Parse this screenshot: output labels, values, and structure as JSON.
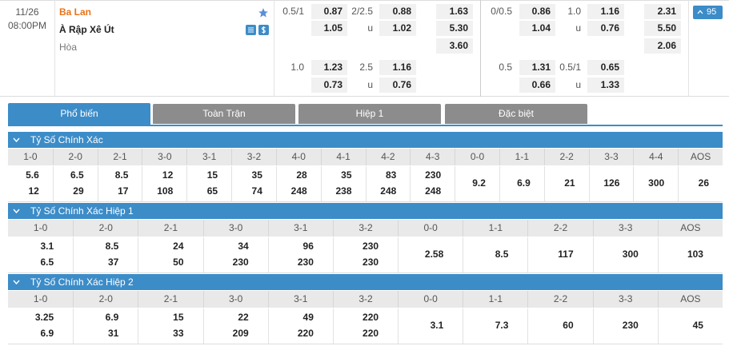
{
  "match": {
    "date": "11/26",
    "time": "08:00PM",
    "home": "Ba Lan",
    "away": "À Rập Xê Út",
    "draw": "Hòa",
    "more": "95"
  },
  "odds": [
    {
      "main": [
        {
          "hdp_line": "0.5/1",
          "hdp": "0.87",
          "ou_line": "2/2.5",
          "ou": "0.88",
          "x12": "1.63"
        },
        {
          "hdp": "1.05",
          "ou_line": "u",
          "ou": "1.02",
          "x12": "5.30"
        },
        {
          "x12": "3.60"
        }
      ],
      "alt": [
        {
          "hdp_line": "1.0",
          "hdp": "1.23",
          "ou_line": "2.5",
          "ou": "1.16"
        },
        {
          "hdp": "0.73",
          "ou_line": "u",
          "ou": "0.76"
        }
      ]
    },
    {
      "main": [
        {
          "hdp_line": "0/0.5",
          "hdp": "0.86",
          "ou_line": "1.0",
          "ou": "1.16",
          "x12": "2.31"
        },
        {
          "hdp": "1.04",
          "ou_line": "u",
          "ou": "0.76",
          "x12": "5.50"
        },
        {
          "x12": "2.06"
        }
      ],
      "alt": [
        {
          "hdp_line": "0.5",
          "hdp": "1.31",
          "ou_line": "0.5/1",
          "ou": "0.65"
        },
        {
          "hdp": "0.66",
          "ou_line": "u",
          "ou": "1.33"
        }
      ]
    }
  ],
  "tabs": [
    "Phổ biến",
    "Toàn Trận",
    "Hiệp 1",
    "Đặc biệt"
  ],
  "active_tab": 0,
  "sections": [
    {
      "title": "Tỷ Số Chính Xác",
      "headers": [
        "1-0",
        "2-0",
        "2-1",
        "3-0",
        "3-1",
        "3-2",
        "4-0",
        "4-1",
        "4-2",
        "4-3",
        "0-0",
        "1-1",
        "2-2",
        "3-3",
        "4-4",
        "AOS"
      ],
      "cells": [
        [
          "5.6",
          "12"
        ],
        [
          "6.5",
          "29"
        ],
        [
          "8.5",
          "17"
        ],
        [
          "12",
          "108"
        ],
        [
          "15",
          "65"
        ],
        [
          "35",
          "74"
        ],
        [
          "28",
          "248"
        ],
        [
          "35",
          "238"
        ],
        [
          "83",
          "248"
        ],
        [
          "230",
          "248"
        ],
        [
          "9.2"
        ],
        [
          "6.9"
        ],
        [
          "21"
        ],
        [
          "126"
        ],
        [
          "300"
        ],
        [
          "26"
        ]
      ]
    },
    {
      "title": "Tỷ Số Chính Xác Hiệp 1",
      "headers": [
        "1-0",
        "2-0",
        "2-1",
        "3-0",
        "3-1",
        "3-2",
        "0-0",
        "1-1",
        "2-2",
        "3-3",
        "AOS"
      ],
      "cells": [
        [
          "3.1",
          "6.5"
        ],
        [
          "8.5",
          "37"
        ],
        [
          "24",
          "50"
        ],
        [
          "34",
          "230"
        ],
        [
          "96",
          "230"
        ],
        [
          "230",
          "230"
        ],
        [
          "2.58"
        ],
        [
          "8.5"
        ],
        [
          "117"
        ],
        [
          "300"
        ],
        [
          "103"
        ]
      ]
    },
    {
      "title": "Tỷ Số Chính Xác Hiệp 2",
      "headers": [
        "1-0",
        "2-0",
        "2-1",
        "3-0",
        "3-1",
        "3-2",
        "0-0",
        "1-1",
        "2-2",
        "3-3",
        "AOS"
      ],
      "cells": [
        [
          "3.25",
          "6.9"
        ],
        [
          "6.9",
          "31"
        ],
        [
          "15",
          "33"
        ],
        [
          "22",
          "209"
        ],
        [
          "49",
          "220"
        ],
        [
          "220",
          "220"
        ],
        [
          "3.1"
        ],
        [
          "7.3"
        ],
        [
          "60"
        ],
        [
          "230"
        ],
        [
          "45"
        ]
      ]
    }
  ]
}
